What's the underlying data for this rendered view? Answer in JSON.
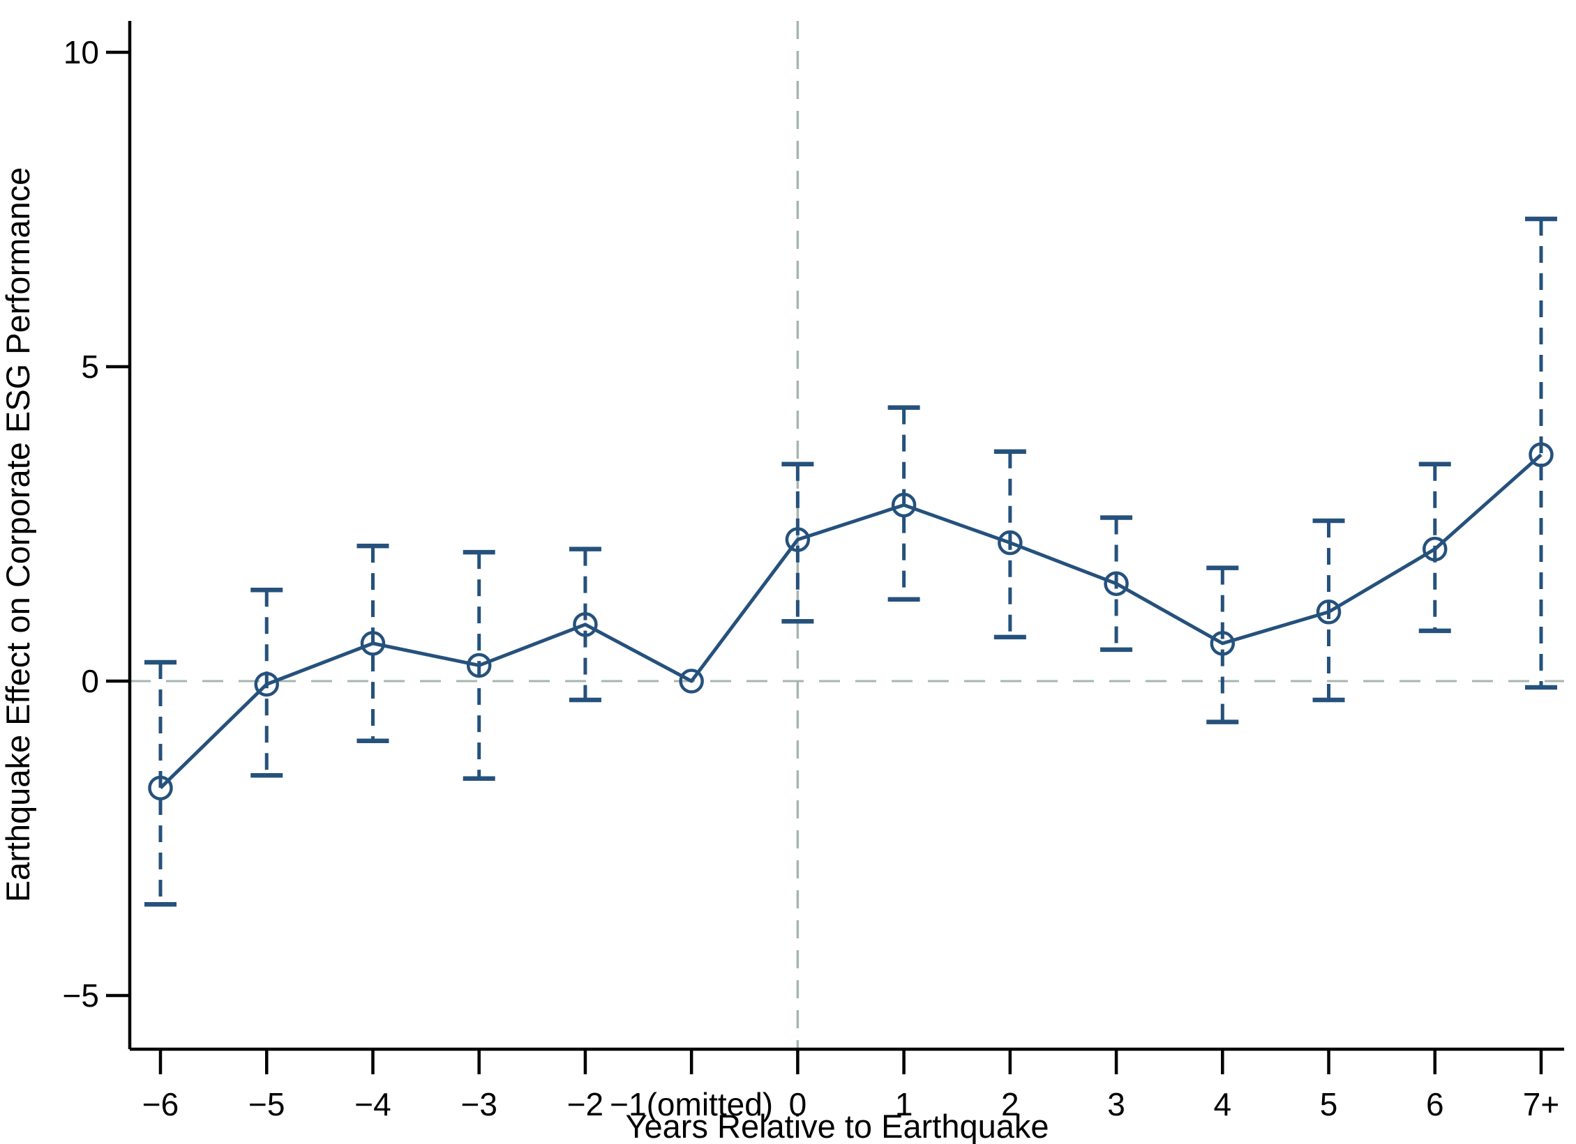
{
  "chart_data": {
    "type": "line",
    "subtype": "event-study coefficient plot with 95% confidence intervals",
    "title": "",
    "xlabel": "Years Relative to Earthquake",
    "ylabel": "Earthquake Effect on Corporate ESG Performance",
    "x_tick_labels": [
      "−6",
      "−5",
      "−4",
      "−3",
      "−2",
      "−1(omitted)",
      "0",
      "1",
      "2",
      "3",
      "4",
      "5",
      "6",
      "7+"
    ],
    "y_ticks": [
      [
        -5,
        "−5"
      ],
      [
        0,
        "0"
      ],
      [
        5,
        "5"
      ],
      [
        10,
        "10"
      ]
    ],
    "ylim": [
      -5.85,
      10.5
    ],
    "grid": "off",
    "legend": "none",
    "series": [
      {
        "name": "coefficient",
        "marker": "open-circle",
        "line_style": "solid",
        "values": [
          -1.7,
          -0.05,
          0.6,
          0.25,
          0.9,
          0,
          2.25,
          2.8,
          2.2,
          1.55,
          0.6,
          1.1,
          2.1,
          3.6
        ],
        "ci_low": [
          -3.55,
          -1.5,
          -0.95,
          -1.55,
          -0.3,
          null,
          0.95,
          1.3,
          0.7,
          0.5,
          -0.65,
          -0.3,
          0.8,
          -0.1
        ],
        "ci_high": [
          0.3,
          1.45,
          2.15,
          2.05,
          2.1,
          null,
          3.45,
          4.35,
          3.65,
          2.6,
          1.8,
          2.55,
          3.45,
          7.35
        ]
      }
    ],
    "reference_lines": {
      "horizontal_at": 0,
      "vertical_at_label": "0",
      "style": "dashed"
    },
    "colors": {
      "series": "#25517c",
      "reference": "#a6b6b1",
      "axis": "#000000",
      "text": "#000000",
      "background": "#ffffff"
    }
  }
}
